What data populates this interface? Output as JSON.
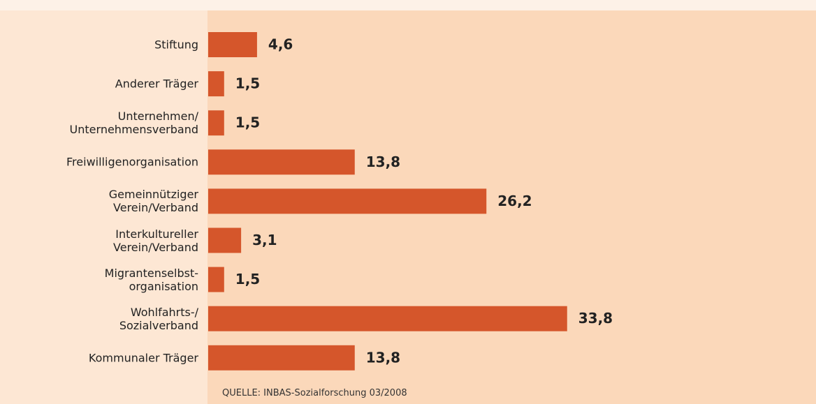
{
  "chart_data": {
    "type": "barh",
    "categories": [
      "Stiftung",
      "Anderer Träger",
      "Unternehmen/\nUnternehmensverband",
      "Freiwilligenorganisation",
      "Gemeinnütziger\nVerein/Verband",
      "Interkultureller\nVerein/Verband",
      "Migrantenselbst-\norganisation",
      "Wohlfahrts-/\nSozialverband",
      "Kommunaler Träger"
    ],
    "values": [
      4.6,
      1.5,
      1.5,
      13.8,
      26.2,
      3.1,
      1.5,
      33.8,
      13.8
    ],
    "value_labels": [
      "4,6",
      "1,5",
      "1,5",
      "13,8",
      "26,2",
      "3,1",
      "1,5",
      "33,8",
      "13,8"
    ],
    "color": "#d5562b",
    "xlim": [
      0,
      35
    ],
    "source": "QUELLE: INBAS-Sozialforschung 03/2008"
  }
}
